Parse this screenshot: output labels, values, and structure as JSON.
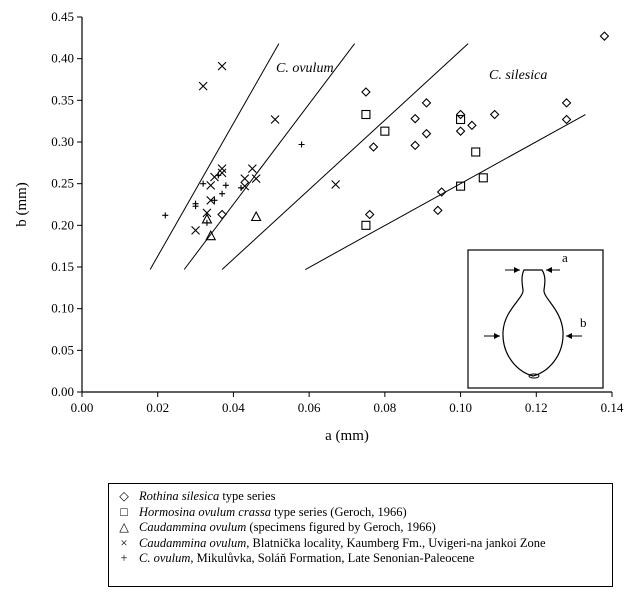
{
  "chart_data": {
    "type": "scatter",
    "xlabel": "a (mm)",
    "ylabel": "b (mm)",
    "xlim": [
      0,
      0.14
    ],
    "ylim": [
      0,
      0.45
    ],
    "xticks": [
      "0.00",
      "0.02",
      "0.04",
      "0.06",
      "0.08",
      "0.10",
      "0.12",
      "0.14"
    ],
    "yticks": [
      "0.00",
      "0.05",
      "0.10",
      "0.15",
      "0.20",
      "0.25",
      "0.30",
      "0.35",
      "0.40",
      "0.45"
    ],
    "grid": false,
    "legend_position": "bottom",
    "series": [
      {
        "marker": "diamond",
        "points": [
          [
            0.037,
            0.213
          ],
          [
            0.076,
            0.213
          ],
          [
            0.077,
            0.294
          ],
          [
            0.075,
            0.36
          ],
          [
            0.088,
            0.296
          ],
          [
            0.088,
            0.328
          ],
          [
            0.091,
            0.31
          ],
          [
            0.091,
            0.347
          ],
          [
            0.094,
            0.218
          ],
          [
            0.095,
            0.24
          ],
          [
            0.1,
            0.333
          ],
          [
            0.1,
            0.313
          ],
          [
            0.103,
            0.32
          ],
          [
            0.109,
            0.333
          ],
          [
            0.128,
            0.347
          ],
          [
            0.128,
            0.327
          ],
          [
            0.138,
            0.427
          ]
        ]
      },
      {
        "marker": "square",
        "points": [
          [
            0.075,
            0.333
          ],
          [
            0.075,
            0.2
          ],
          [
            0.08,
            0.313
          ],
          [
            0.1,
            0.327
          ],
          [
            0.1,
            0.247
          ],
          [
            0.104,
            0.288
          ],
          [
            0.106,
            0.257
          ]
        ]
      },
      {
        "marker": "triangle",
        "points": [
          [
            0.033,
            0.207
          ],
          [
            0.034,
            0.187
          ],
          [
            0.046,
            0.21
          ]
        ]
      },
      {
        "marker": "x",
        "points": [
          [
            0.032,
            0.367
          ],
          [
            0.037,
            0.391
          ],
          [
            0.051,
            0.327
          ],
          [
            0.067,
            0.249
          ],
          [
            0.03,
            0.194
          ],
          [
            0.033,
            0.215
          ],
          [
            0.034,
            0.23
          ],
          [
            0.034,
            0.248
          ],
          [
            0.035,
            0.258
          ],
          [
            0.037,
            0.263
          ],
          [
            0.037,
            0.268
          ],
          [
            0.043,
            0.256
          ],
          [
            0.043,
            0.247
          ],
          [
            0.045,
            0.268
          ],
          [
            0.046,
            0.256
          ]
        ]
      },
      {
        "marker": "plus",
        "points": [
          [
            0.022,
            0.212
          ],
          [
            0.03,
            0.223
          ],
          [
            0.032,
            0.25
          ],
          [
            0.033,
            0.203
          ],
          [
            0.035,
            0.23
          ],
          [
            0.036,
            0.26
          ],
          [
            0.037,
            0.238
          ],
          [
            0.038,
            0.248
          ],
          [
            0.042,
            0.245
          ],
          [
            0.058,
            0.297
          ],
          [
            0.03,
            0.226
          ]
        ]
      }
    ],
    "lines": [
      {
        "label": "C. ovulum",
        "from": [
          0.018,
          0.147
        ],
        "to": [
          0.052,
          0.418
        ]
      },
      {
        "label": "",
        "from": [
          0.027,
          0.147
        ],
        "to": [
          0.072,
          0.418
        ]
      },
      {
        "label": "",
        "from": [
          0.037,
          0.147
        ],
        "to": [
          0.102,
          0.418
        ]
      },
      {
        "label": "C. silesica",
        "from": [
          0.059,
          0.147
        ],
        "to": [
          0.133,
          0.333
        ]
      }
    ],
    "annotations": [
      "C. ovulum",
      "C. silesica"
    ],
    "inset": {
      "labels": [
        "a",
        "b"
      ]
    }
  },
  "legend": {
    "items": [
      {
        "symbol": "◇",
        "name_italic": "Rothina silesica",
        "rest": " type series"
      },
      {
        "symbol": "□",
        "name_italic": "Hormosina ovulum crassa",
        "rest": " type series (Geroch, 1966)"
      },
      {
        "symbol": "△",
        "name_italic": "Caudammina ovulum",
        "rest": " (specimens figured by Geroch, 1966)"
      },
      {
        "symbol": "×",
        "name_italic": "Caudammina  ovulum",
        "rest": ", Blatnička locality, Kaumberg Fm., Uvigeri-na jankoi Zone"
      },
      {
        "symbol": "+",
        "name_italic": "C. ovulum",
        "rest": ", Mikulůvka, Soláň Formation, Late Senonian-Paleocene"
      }
    ]
  }
}
